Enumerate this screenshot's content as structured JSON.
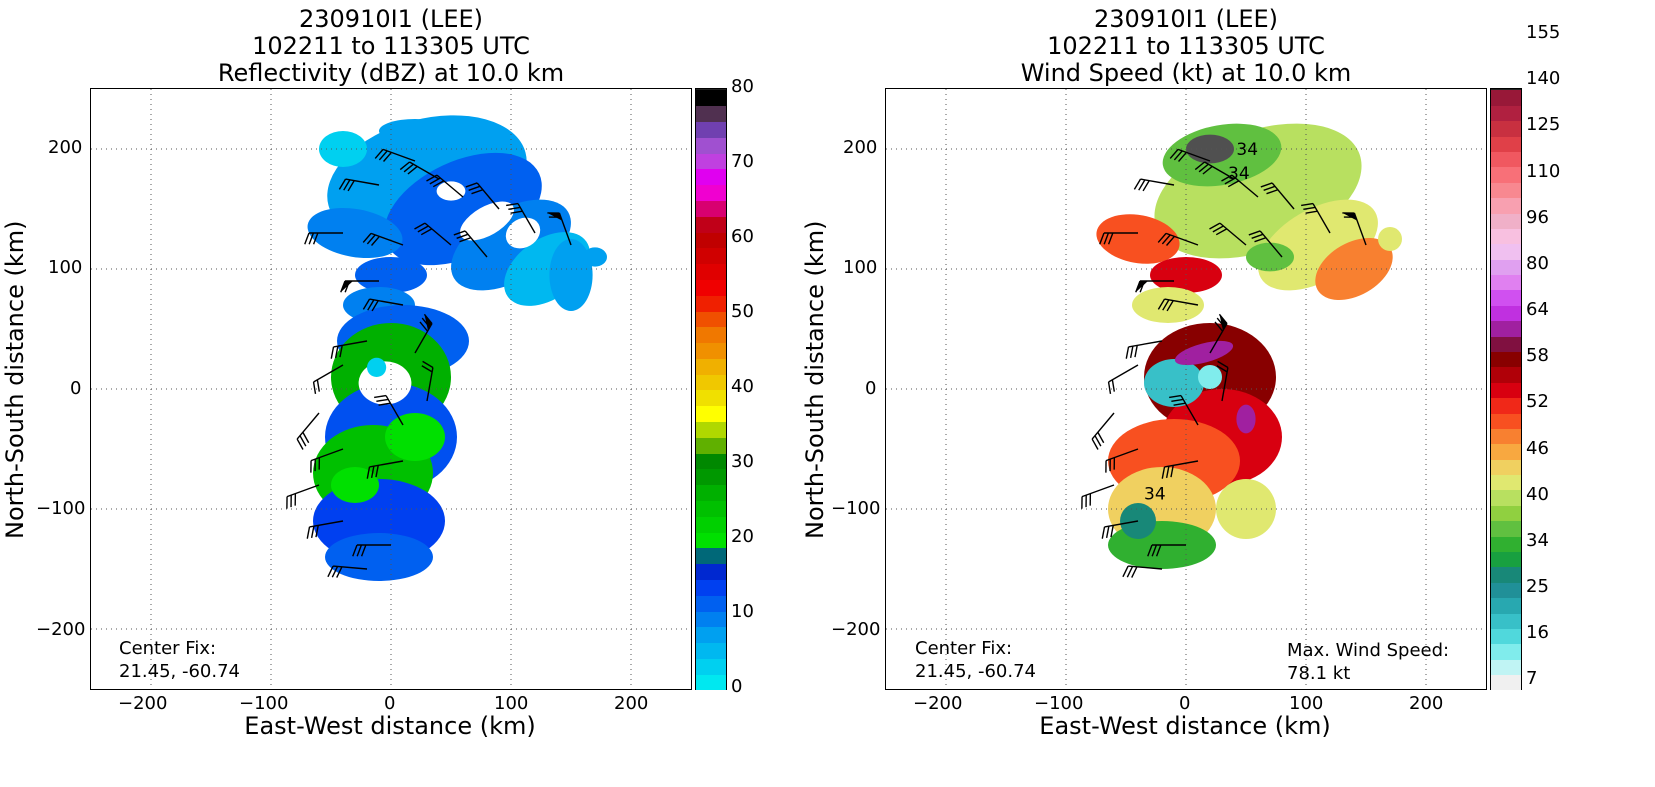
{
  "chart_data": [
    {
      "type": "heatmap",
      "title_lines": [
        "230910I1 (LEE)",
        "102211 to 113305 UTC",
        "Reflectivity (dBZ) at 10.0 km"
      ],
      "xlabel": "East-West distance (km)",
      "ylabel": "North-South distance (km)",
      "xlim": [
        -250,
        250
      ],
      "ylim": [
        -250,
        250
      ],
      "x_ticks": [
        "−200",
        "−100",
        "0",
        "100",
        "200"
      ],
      "y_ticks": [
        "200",
        "100",
        "0",
        "−100",
        "−200"
      ],
      "grid": true,
      "annotation_lines": [
        "Center Fix:",
        "21.45, -60.74"
      ],
      "colorbar": {
        "ticks": [
          "0",
          "10",
          "20",
          "30",
          "40",
          "50",
          "60",
          "70",
          "80"
        ],
        "range": [
          0,
          80
        ],
        "colors": [
          "#00e8f0",
          "#00d0f0",
          "#00b8f0",
          "#00a0f0",
          "#0080f0",
          "#0060f0",
          "#0040f0",
          "#0028d0",
          "#006878",
          "#00e000",
          "#00d000",
          "#00c000",
          "#00b000",
          "#009800",
          "#008800",
          "#60b000",
          "#b0d800",
          "#ffff00",
          "#f0e000",
          "#f0c800",
          "#f0b000",
          "#f09000",
          "#f07800",
          "#f05000",
          "#f02000",
          "#f00000",
          "#e00000",
          "#d00000",
          "#c00000",
          "#c00018",
          "#d80070",
          "#f000d0",
          "#e000f0",
          "#c040e0",
          "#a050d0",
          "#7040b0",
          "#503050",
          "#000000"
        ]
      }
    },
    {
      "type": "heatmap",
      "title_lines": [
        "230910I1 (LEE)",
        "102211 to 113305 UTC",
        "Wind Speed (kt) at 10.0 km"
      ],
      "xlabel": "East-West distance (km)",
      "ylabel": "North-South distance (km)",
      "xlim": [
        -250,
        250
      ],
      "ylim": [
        -250,
        250
      ],
      "x_ticks": [
        "−200",
        "−100",
        "0",
        "100",
        "200"
      ],
      "y_ticks": [
        "200",
        "100",
        "0",
        "−100",
        "−200"
      ],
      "grid": true,
      "annotation_lines": [
        "Center Fix:",
        "21.45, -60.74"
      ],
      "max_wind_lines": [
        "Max. Wind Speed:",
        "78.1 kt"
      ],
      "contour_labels": [
        "34",
        "34",
        "34"
      ],
      "colorbar": {
        "ticks": [
          "7",
          "16",
          "25",
          "34",
          "40",
          "46",
          "52",
          "58",
          "64",
          "80",
          "96",
          "110",
          "125",
          "140",
          "155"
        ],
        "colors": [
          "#f0f0f0",
          "#c0f4f4",
          "#80ecec",
          "#50d8dc",
          "#38c0c8",
          "#28a8b0",
          "#209098",
          "#188878",
          "#18a040",
          "#30b030",
          "#60c040",
          "#90d040",
          "#b8e060",
          "#e0e870",
          "#f0d060",
          "#f8a840",
          "#f88030",
          "#f85020",
          "#f02818",
          "#d80010",
          "#b00008",
          "#880000",
          "#801040",
          "#a020a0",
          "#c030e0",
          "#d050f0",
          "#e080f0",
          "#e0a0f0",
          "#f0c0f0",
          "#f8c0e0",
          "#f0b0c8",
          "#f8a0b0",
          "#f88890",
          "#f87078",
          "#f05860",
          "#e04048",
          "#c83040",
          "#b02040",
          "#981838"
        ]
      }
    }
  ]
}
